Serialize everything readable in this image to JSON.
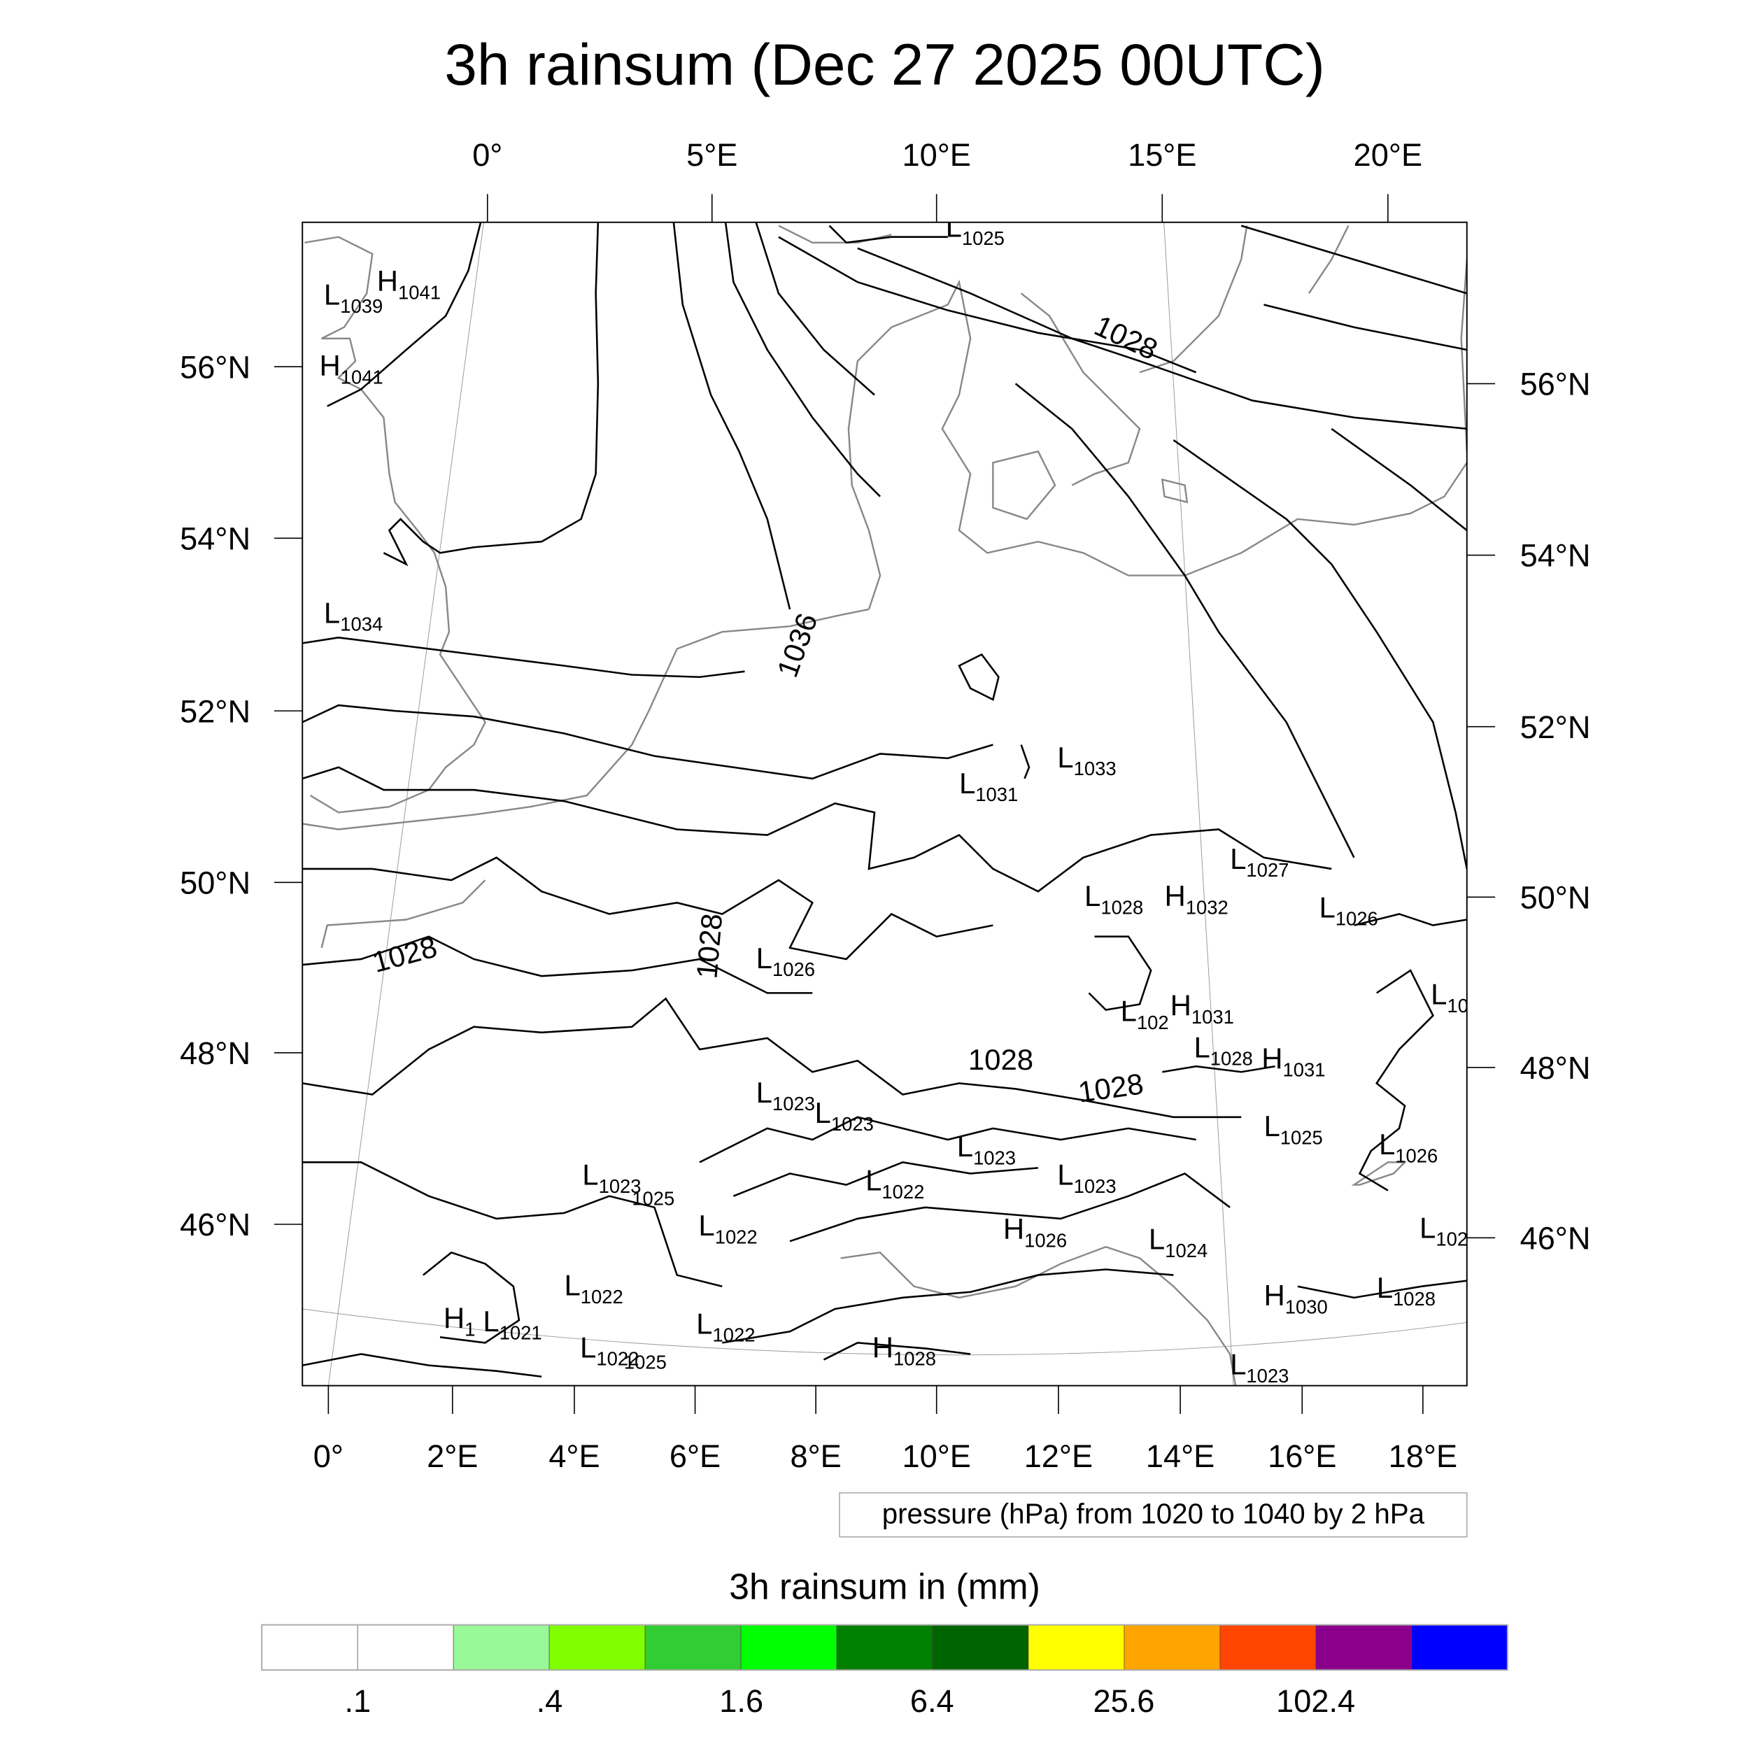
{
  "chart_data": {
    "type": "heatmap",
    "title": "3h rainsum (Dec 27 2025 00UTC)",
    "top_ticks": [
      "0°",
      "5°E",
      "10°E",
      "15°E",
      "20°E"
    ],
    "bottom_ticks": [
      "0°",
      "2°E",
      "4°E",
      "6°E",
      "8°E",
      "10°E",
      "12°E",
      "14°E",
      "16°E",
      "18°E"
    ],
    "left_ticks": [
      "56°N",
      "54°N",
      "52°N",
      "50°N",
      "48°N",
      "46°N"
    ],
    "right_ticks": [
      "56°N",
      "54°N",
      "52°N",
      "50°N",
      "48°N",
      "46°N"
    ],
    "contour_info": "pressure (hPa) from 1020 to 1040 by 2 hPa",
    "contour_labels": [
      "1036",
      "1028",
      "1028",
      "1028",
      "1028",
      "1028"
    ],
    "pressure_centers": [
      {
        "t": "L",
        "v": "1039"
      },
      {
        "t": "H",
        "v": "1041"
      },
      {
        "t": "H",
        "v": "1041"
      },
      {
        "t": "L",
        "v": "1034"
      },
      {
        "t": "L",
        "v": "1025"
      },
      {
        "t": "L",
        "v": "1031"
      },
      {
        "t": "L",
        "v": "1033"
      },
      {
        "t": "L",
        "v": "1027"
      },
      {
        "t": "H",
        "v": "1032"
      },
      {
        "t": "L",
        "v": "1028"
      },
      {
        "t": "L",
        "v": "1026"
      },
      {
        "t": "L",
        "v": "1026"
      },
      {
        "t": "L",
        "v": "10"
      },
      {
        "t": "L",
        "v": "102"
      },
      {
        "t": "H",
        "v": "1031"
      },
      {
        "t": "L",
        "v": "1028"
      },
      {
        "t": "H",
        "v": "1031"
      },
      {
        "t": "L",
        "v": "1023"
      },
      {
        "t": "L",
        "v": "1023"
      },
      {
        "t": "L",
        "v": "1025"
      },
      {
        "t": "L",
        "v": "1026"
      },
      {
        "t": "L",
        "v": "1023"
      },
      {
        "t": "L",
        "v": "1023"
      },
      {
        "t": "",
        "v": "1025"
      },
      {
        "t": "L",
        "v": "1023"
      },
      {
        "t": "L",
        "v": "1022"
      },
      {
        "t": "L",
        "v": "1022"
      },
      {
        "t": "H",
        "v": "1026"
      },
      {
        "t": "L",
        "v": "1024"
      },
      {
        "t": "L",
        "v": "102"
      },
      {
        "t": "L",
        "v": "1022"
      },
      {
        "t": "H",
        "v": "1030"
      },
      {
        "t": "L",
        "v": "1028"
      },
      {
        "t": "H",
        "v": "1"
      },
      {
        "t": "L",
        "v": "1021"
      },
      {
        "t": "L",
        "v": "1022"
      },
      {
        "t": "L",
        "v": "1022"
      },
      {
        "t": "",
        "v": "1025"
      },
      {
        "t": "H",
        "v": "1028"
      },
      {
        "t": "L",
        "v": "1023"
      }
    ],
    "colorbar": {
      "title": "3h rainsum in (mm)",
      "labels": [
        ".1",
        ".4",
        "1.6",
        "6.4",
        "25.6",
        "102.4"
      ],
      "colors": [
        "#ffffff",
        "#ffffff",
        "#99f898",
        "#80ff00",
        "#32cd32",
        "#00ff00",
        "#008000",
        "#006400",
        "#ffff00",
        "#ffa500",
        "#ff4500",
        "#8b008b",
        "#0000ff"
      ]
    }
  }
}
